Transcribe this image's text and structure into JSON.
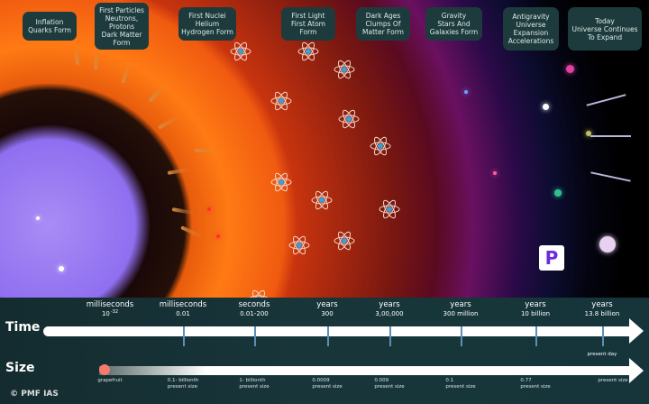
{
  "stages": [
    "Inflation\nQuarks Form",
    "First Particles\nNeutrons,\nProtons\nDark Matter\nForm",
    "First Nuclei\nHelium\nHydrogen Form",
    "First Light\nFirst  Atom\nForm",
    "Dark Ages\nClumps Of\nMatter Form",
    "Gravity\nStars And\nGalaxies Form",
    "Antigravity\nUniverse\nExpansion\nAccelerations",
    "Today\nUniverse Continues\nTo Expand"
  ],
  "time": {
    "title": "Time",
    "ticks": [
      {
        "unit": "milliseconds",
        "value": "10",
        "exp": "-32"
      },
      {
        "unit": "milliseconds",
        "value": "0.01"
      },
      {
        "unit": "seconds",
        "value": "0.01-200"
      },
      {
        "unit": "years",
        "value": "300"
      },
      {
        "unit": "years",
        "value": "3,00,000"
      },
      {
        "unit": "years",
        "value": "300 million"
      },
      {
        "unit": "years",
        "value": "10 billion"
      },
      {
        "unit": "years",
        "value": "13.8 billion"
      }
    ],
    "present": "present day"
  },
  "size": {
    "title": "Size",
    "labels": [
      "grapefruit",
      "0.1- billionth\npresent size",
      "1- billionth\npresent size",
      "0.0009\npresent size",
      "0.009\npresent size",
      "0.1\npresent size",
      "0.77\npresent size",
      "present size"
    ]
  },
  "credit": "© PMF IAS",
  "logo": "P",
  "colors": {
    "bar": "#18363a",
    "label_box": "#1d3b3d",
    "tick": "#5a8fb8"
  }
}
